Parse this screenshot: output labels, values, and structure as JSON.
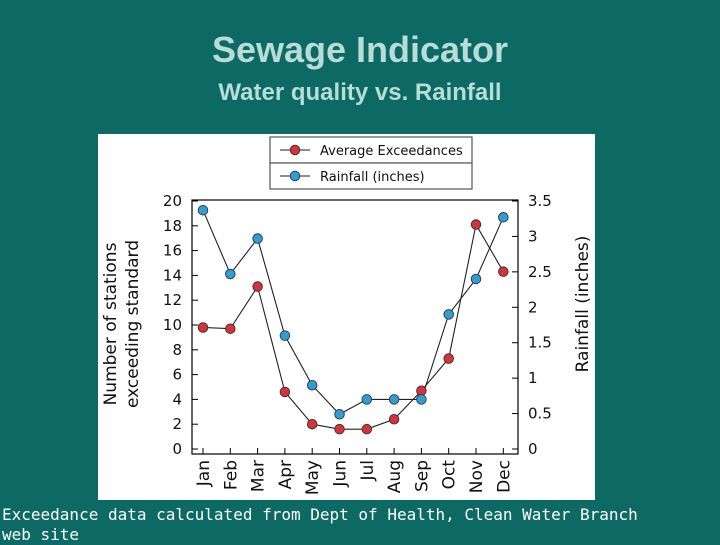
{
  "slide": {
    "title": "Sewage Indicator",
    "subtitle": "Water quality vs. Rainfall",
    "caption_line1": "Exceedance data calculated from Dept of Health, Clean Water Branch",
    "caption_line2": "web site"
  },
  "colors": {
    "background": "#0c6964",
    "title": "#b8dcd8",
    "exceedance_marker": "#d6323c",
    "rainfall_marker": "#2d9fd6"
  },
  "chart_data": {
    "type": "line",
    "categories": [
      "Jan",
      "Feb",
      "Mar",
      "Apr",
      "May",
      "Jun",
      "Jul",
      "Aug",
      "Sep",
      "Oct",
      "Nov",
      "Dec"
    ],
    "series": [
      {
        "name": "Average Exceedances",
        "axis": "left",
        "color": "#d6323c",
        "values": [
          9.8,
          9.7,
          13.1,
          4.6,
          2.0,
          1.6,
          1.6,
          2.4,
          4.7,
          7.3,
          18.1,
          14.3
        ]
      },
      {
        "name": "Rainfall (inches)",
        "axis": "right",
        "color": "#2d9fd6",
        "values": [
          3.37,
          2.47,
          2.97,
          1.6,
          0.9,
          0.49,
          0.7,
          0.7,
          0.7,
          1.9,
          2.4,
          3.27
        ]
      }
    ],
    "ylabel": "Number of stations exceeding standard",
    "ylabel_line1": "Number of stations",
    "ylabel_line2": "exceeding standard",
    "y2label": "Rainfall (inches)",
    "ylim": [
      0,
      20
    ],
    "y2lim": [
      0,
      3.5
    ],
    "yticks": [
      "0",
      "2",
      "4",
      "6",
      "8",
      "10",
      "12",
      "14",
      "16",
      "18",
      "20"
    ],
    "y2ticks": [
      "0",
      "0.5",
      "1",
      "1.5",
      "2",
      "2.5",
      "3",
      "3.5"
    ],
    "grid": false,
    "legend_position": "top"
  }
}
